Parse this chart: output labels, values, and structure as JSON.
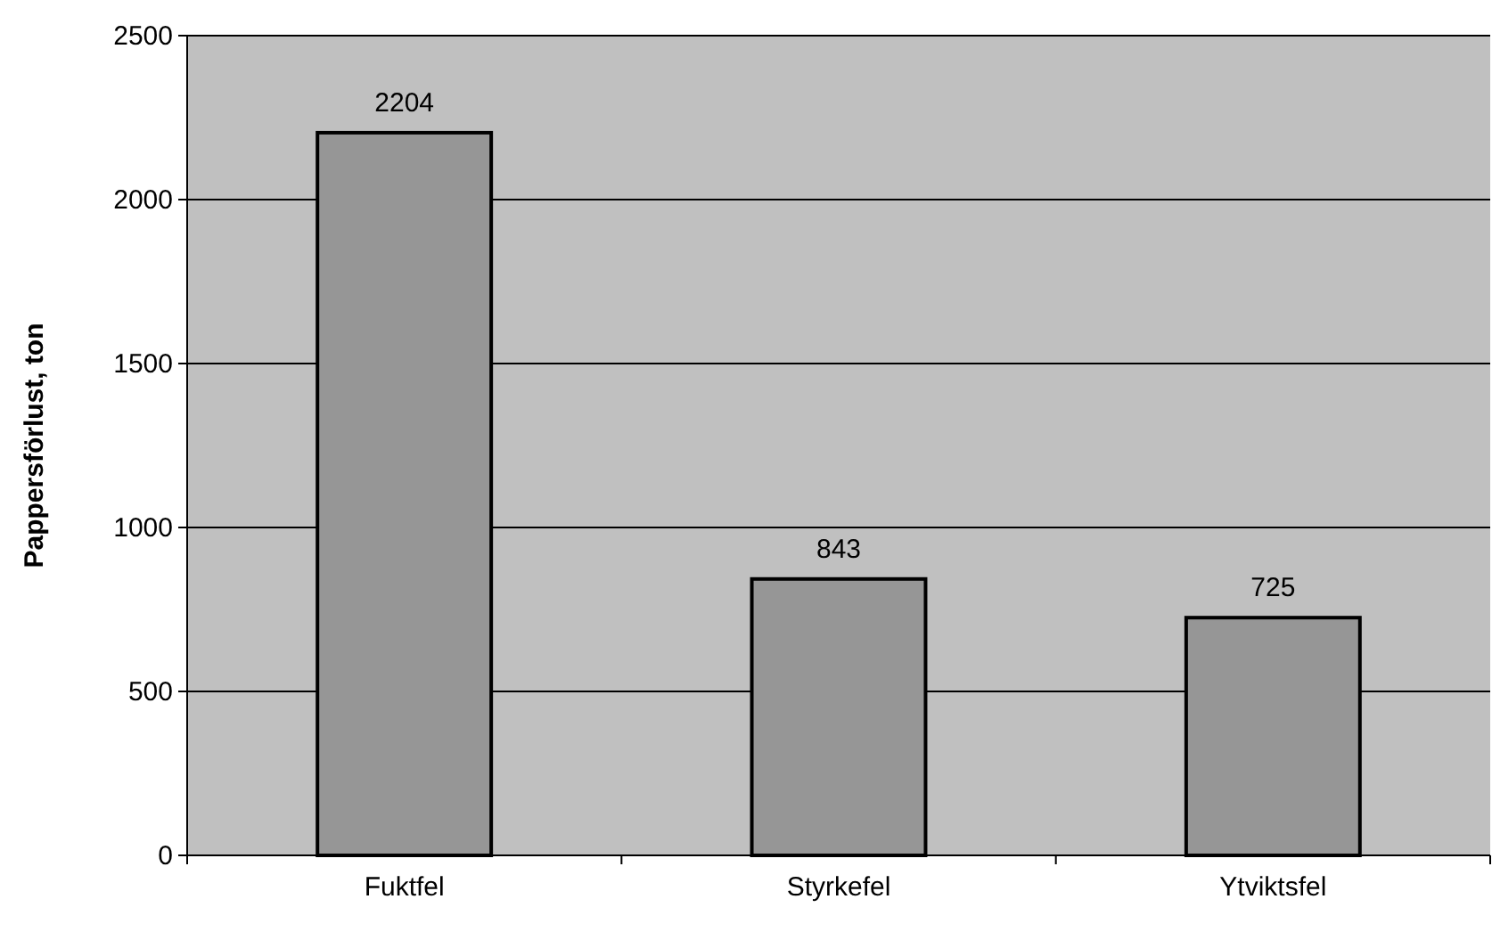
{
  "chart_data": {
    "type": "bar",
    "ylabel": "Pappersförlust, ton",
    "categories": [
      "Fuktfel",
      "Styrkefel",
      "Ytviktsfel"
    ],
    "values": [
      2204,
      843,
      725
    ],
    "color": "#969696",
    "ylim": [
      0,
      2500
    ],
    "yticks": [
      0,
      500,
      1000,
      1500,
      2000,
      2500
    ],
    "grid": "y",
    "data_labels": true
  }
}
